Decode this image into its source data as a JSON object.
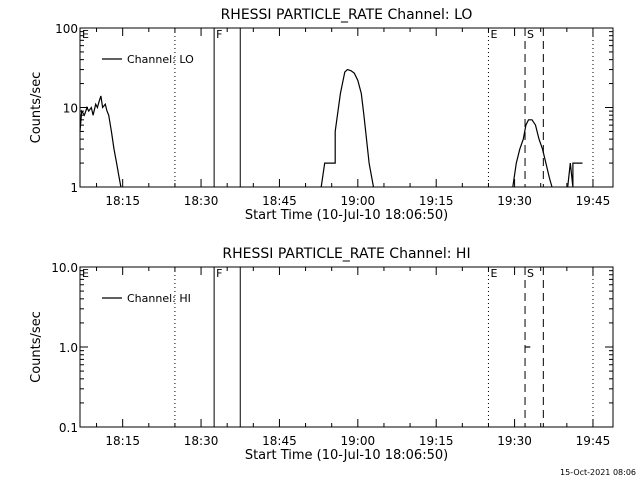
{
  "chart_data": [
    {
      "type": "line",
      "title": "RHESSI PARTICLE_RATE Channel: LO",
      "xlabel": "Start Time (10-Jul-10 18:06:50)",
      "ylabel": "Counts/sec",
      "yscale": "log",
      "ylim": [
        1,
        100
      ],
      "yticks": [
        1,
        10,
        100
      ],
      "ytick_labels": [
        "1",
        "10",
        "100"
      ],
      "xlim": [
        "18:06:50",
        "19:48:50"
      ],
      "xticks": [
        "18:15",
        "18:30",
        "18:45",
        "19:00",
        "19:15",
        "19:30",
        "19:45"
      ],
      "legend": "top-left",
      "grid": false,
      "markers": [
        {
          "label": "E",
          "time": "18:06:50",
          "style": "dotted"
        },
        {
          "label": "",
          "time": "18:25:00",
          "style": "dotted"
        },
        {
          "label": "F",
          "time": "18:32:30",
          "style": "solid"
        },
        {
          "label": "",
          "time": "18:37:30",
          "style": "solid"
        },
        {
          "label": "E",
          "time": "19:25:00",
          "style": "dotted"
        },
        {
          "label": "S",
          "time": "19:32:00",
          "style": "dashed"
        },
        {
          "label": "",
          "time": "19:35:30",
          "style": "dashed"
        },
        {
          "label": "",
          "time": "19:45:00",
          "style": "dotted"
        }
      ],
      "series": [
        {
          "name": "Channel: LO",
          "color": "#000000",
          "segments": [
            {
              "x": [
                "18:06:50",
                "18:07:10",
                "18:07:40",
                "18:08:10",
                "18:08:30",
                "18:09:00",
                "18:09:20",
                "18:09:50",
                "18:10:10",
                "18:10:30",
                "18:10:50",
                "18:11:10",
                "18:11:40",
                "18:12:00",
                "18:12:20",
                "18:12:50",
                "18:13:20",
                "18:13:50",
                "18:14:20",
                "18:14:40"
              ],
              "y": [
                5,
                9,
                8,
                10,
                9,
                10,
                8,
                11,
                10,
                12,
                14,
                10,
                11,
                9,
                8,
                5,
                3,
                2,
                1.3,
                1
              ]
            },
            {
              "x": [
                "18:53:00",
                "18:53:40",
                "18:55:40",
                "18:55:40",
                "18:56:40",
                "18:57:30",
                "18:58:00",
                "18:58:40",
                "18:59:20",
                "19:00:00",
                "19:00:40",
                "19:01:10",
                "19:01:40",
                "19:02:10",
                "19:02:40",
                "19:03:00"
              ],
              "y": [
                1,
                2,
                2,
                5,
                15,
                28,
                30,
                29,
                27,
                22,
                15,
                8,
                4,
                2,
                1.3,
                1
              ]
            },
            {
              "x": [
                "19:29:40",
                "19:30:20",
                "19:31:00",
                "19:31:40",
                "19:32:10",
                "19:32:40",
                "19:33:20",
                "19:34:00",
                "19:34:40",
                "19:35:20",
                "19:36:00",
                "19:36:40",
                "19:37:10"
              ],
              "y": [
                1,
                2,
                3,
                4,
                6,
                7,
                7,
                6,
                4,
                3,
                2,
                1.3,
                1
              ]
            },
            {
              "x": [
                "19:40:10",
                "19:40:40",
                "19:41:10",
                "19:41:10",
                "19:43:00"
              ],
              "y": [
                1,
                2,
                1,
                2,
                2
              ]
            }
          ]
        }
      ]
    },
    {
      "type": "line",
      "title": "RHESSI PARTICLE_RATE Channel: HI",
      "xlabel": "Start Time (10-Jul-10 18:06:50)",
      "ylabel": "Counts/sec",
      "yscale": "log",
      "ylim": [
        0.1,
        10
      ],
      "yticks": [
        0.1,
        1,
        10
      ],
      "ytick_labels": [
        "0.1",
        "1.0",
        "10.0"
      ],
      "xlim": [
        "18:06:50",
        "19:48:50"
      ],
      "xticks": [
        "18:15",
        "18:30",
        "18:45",
        "19:00",
        "19:15",
        "19:30",
        "19:45"
      ],
      "legend": "top-left",
      "grid": false,
      "markers": [
        {
          "label": "E",
          "time": "18:06:50",
          "style": "dotted"
        },
        {
          "label": "",
          "time": "18:25:00",
          "style": "dotted"
        },
        {
          "label": "F",
          "time": "18:32:30",
          "style": "solid"
        },
        {
          "label": "",
          "time": "18:37:30",
          "style": "solid"
        },
        {
          "label": "E",
          "time": "19:25:00",
          "style": "dotted"
        },
        {
          "label": "S",
          "time": "19:32:00",
          "style": "dashed"
        },
        {
          "label": "",
          "time": "19:35:30",
          "style": "dashed"
        },
        {
          "label": "",
          "time": "19:45:00",
          "style": "dotted"
        }
      ],
      "series": [
        {
          "name": "Channel: HI",
          "color": "#000000",
          "segments": [
            {
              "x": [
                "19:32:00",
                "19:33:00"
              ],
              "y": [
                1,
                1
              ]
            }
          ]
        }
      ]
    }
  ],
  "footer": {
    "timestamp": "15-Oct-2021 08:06"
  }
}
